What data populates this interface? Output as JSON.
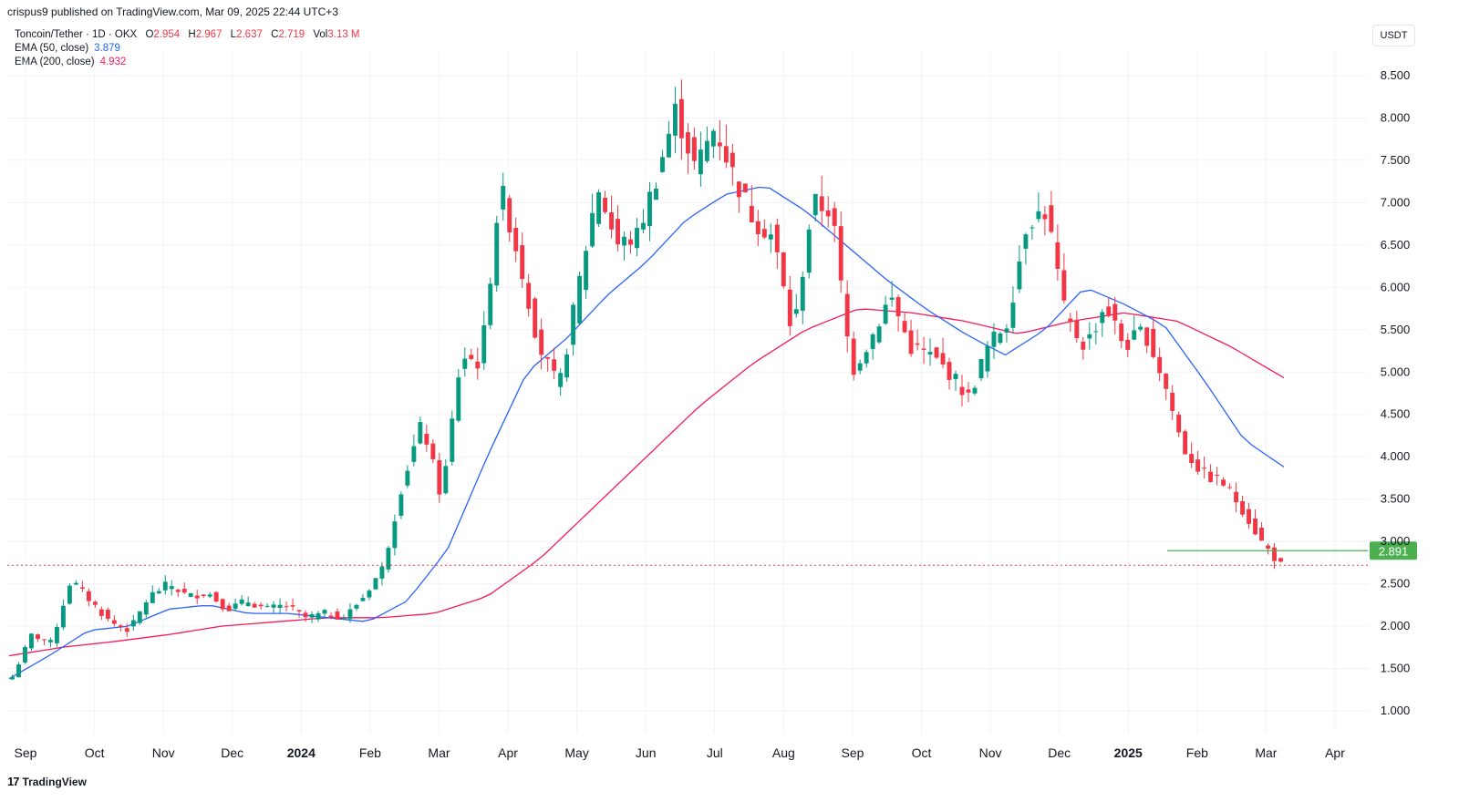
{
  "header": {
    "published": "crispus9 published on TradingView.com, Mar 09, 2025 22:44 UTC+3",
    "currency": "USDT"
  },
  "legend": {
    "symbol": "Toncoin/Tether · 1D · OKX",
    "open_label": "O",
    "open": "2.954",
    "high_label": "H",
    "high": "2.967",
    "low_label": "L",
    "low": "2.637",
    "close_label": "C",
    "close": "2.719",
    "vol_label": "Vol",
    "vol": "3.13 M",
    "ema50_label": "EMA (50, close)",
    "ema50": "3.879",
    "ema200_label": "EMA (200, close)",
    "ema200": "4.932"
  },
  "brand": {
    "name": "TradingView",
    "logo_glyph": "17"
  },
  "colors": {
    "up": "#089981",
    "down": "#f23645",
    "ema50": "#2962ff",
    "ema200": "#f7185a",
    "marker": "#4caf50",
    "grid": "#f0f3fa"
  },
  "chart_data": {
    "type": "candlestick",
    "title": "Toncoin/Tether · 1D · OKX",
    "ylim": [
      0.8,
      8.75
    ],
    "y_ticks": [
      "8.500",
      "8.000",
      "7.500",
      "7.000",
      "6.500",
      "6.000",
      "5.500",
      "5.000",
      "4.500",
      "4.000",
      "3.500",
      "3.000",
      "2.500",
      "2.000",
      "1.500",
      "1.000"
    ],
    "x_ticks": [
      "Sep",
      "Oct",
      "Nov",
      "Dec",
      "2024",
      "Feb",
      "Mar",
      "Apr",
      "May",
      "Jun",
      "Jul",
      "Aug",
      "Sep",
      "Oct",
      "Nov",
      "Dec",
      "2025",
      "Feb",
      "Mar",
      "Apr"
    ],
    "x_ticks_bold": [
      "2024",
      "2025"
    ],
    "price_keypoints": [
      1.4,
      1.9,
      1.8,
      2.55,
      2.3,
      2.05,
      1.95,
      2.35,
      2.5,
      2.35,
      2.4,
      2.2,
      2.3,
      2.2,
      2.25,
      2.1,
      2.15,
      2.1,
      2.35,
      2.7,
      3.7,
      4.4,
      3.5,
      5.2,
      5.1,
      7.2,
      6.3,
      5.3,
      4.8,
      6.0,
      7.2,
      6.5,
      6.6,
      7.3,
      8.1,
      7.4,
      7.9,
      7.3,
      6.8,
      6.6,
      5.4,
      7.0,
      6.9,
      5.0,
      5.4,
      5.9,
      5.3,
      5.2,
      5.0,
      4.7,
      5.3,
      5.6,
      6.8,
      6.9,
      5.6,
      5.3,
      5.8,
      5.3,
      5.5,
      4.9,
      4.1,
      3.8,
      3.7,
      3.4,
      3.0,
      2.72
    ],
    "ema50_keypoints": [
      1.38,
      1.65,
      1.95,
      2.0,
      2.2,
      2.25,
      2.15,
      2.15,
      2.1,
      2.05,
      2.3,
      2.9,
      4.0,
      5.0,
      5.4,
      5.9,
      6.3,
      6.8,
      7.1,
      7.2,
      6.9,
      6.5,
      6.1,
      5.75,
      5.45,
      5.2,
      5.5,
      6.0,
      5.8,
      5.55,
      4.9,
      4.2,
      3.879
    ],
    "ema200_keypoints": [
      1.65,
      1.75,
      1.82,
      1.9,
      2.0,
      2.05,
      2.1,
      2.1,
      2.15,
      2.35,
      2.8,
      3.4,
      4.0,
      4.6,
      5.1,
      5.5,
      5.75,
      5.7,
      5.6,
      5.45,
      5.6,
      5.7,
      5.6,
      5.3,
      4.932
    ],
    "current_price": 2.719,
    "marker_level": 2.891,
    "marker_label": "2.891",
    "ema50_last": 3.879,
    "ema200_last": 4.932
  }
}
